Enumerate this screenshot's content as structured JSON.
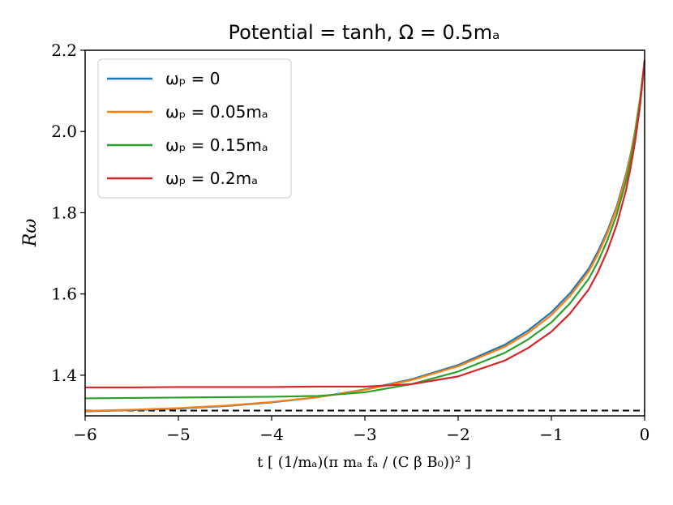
{
  "chart_data": {
    "type": "line",
    "title": "Potential = tanh, Ω = 0.5m_a",
    "title_display": "Potential = tanh, Ω = 0.5mₐ",
    "xlabel": "t [1/m_a (π m_a f_a / (C β B_0))^2]",
    "xlabel_display": "t [ (1/mₐ)(π mₐ fₐ / (C β B₀))² ]",
    "ylabel": "Rω",
    "xlim": [
      -6,
      0
    ],
    "ylim": [
      1.3,
      2.2
    ],
    "xticks": [
      -6,
      -5,
      -4,
      -3,
      -2,
      -1,
      0
    ],
    "xtick_labels": [
      "−6",
      "−5",
      "−4",
      "−3",
      "−2",
      "−1",
      "0"
    ],
    "yticks": [
      1.4,
      1.6,
      1.8,
      2.0,
      2.2
    ],
    "ytick_labels": [
      "1.4",
      "1.6",
      "1.8",
      "2.0",
      "2.2"
    ],
    "legend_position": "top-left",
    "hline": {
      "y": 1.313,
      "style": "dashed",
      "color": "#000000"
    },
    "x": [
      -6,
      -5.5,
      -5,
      -4.5,
      -4,
      -3.5,
      -3,
      -2.5,
      -2,
      -1.5,
      -1.25,
      -1,
      -0.8,
      -0.6,
      -0.5,
      -0.4,
      -0.3,
      -0.2,
      -0.15,
      -0.1,
      -0.05,
      0
    ],
    "series": [
      {
        "name": "ω_p = 0",
        "legend": "ωₚ = 0",
        "color": "#1f77b4",
        "values": [
          1.311,
          1.314,
          1.318,
          1.324,
          1.333,
          1.346,
          1.365,
          1.39,
          1.425,
          1.475,
          1.51,
          1.555,
          1.602,
          1.662,
          1.705,
          1.755,
          1.815,
          1.895,
          1.945,
          2.005,
          2.08,
          2.175
        ]
      },
      {
        "name": "ω_p = 0.05m_a",
        "legend": "ωₚ = 0.05mₐ",
        "color": "#ff7f0e",
        "values": [
          1.312,
          1.315,
          1.319,
          1.325,
          1.334,
          1.346,
          1.364,
          1.388,
          1.422,
          1.47,
          1.504,
          1.548,
          1.595,
          1.655,
          1.698,
          1.749,
          1.81,
          1.89,
          1.942,
          2.003,
          2.078,
          2.175
        ]
      },
      {
        "name": "ω_p = 0.15m_a",
        "legend": "ωₚ = 0.15mₐ",
        "color": "#2ca02c",
        "values": [
          1.343,
          1.344,
          1.345,
          1.346,
          1.347,
          1.349,
          1.358,
          1.378,
          1.409,
          1.455,
          1.488,
          1.53,
          1.577,
          1.637,
          1.68,
          1.732,
          1.795,
          1.877,
          1.931,
          1.995,
          2.073,
          2.175
        ]
      },
      {
        "name": "ω_p = 0.2m_a",
        "legend": "ωₚ = 0.2mₐ",
        "color": "#d62728",
        "values": [
          1.37,
          1.37,
          1.371,
          1.371,
          1.371,
          1.372,
          1.372,
          1.378,
          1.397,
          1.436,
          1.467,
          1.507,
          1.552,
          1.611,
          1.654,
          1.706,
          1.77,
          1.855,
          1.911,
          1.978,
          2.061,
          2.175
        ]
      }
    ]
  }
}
